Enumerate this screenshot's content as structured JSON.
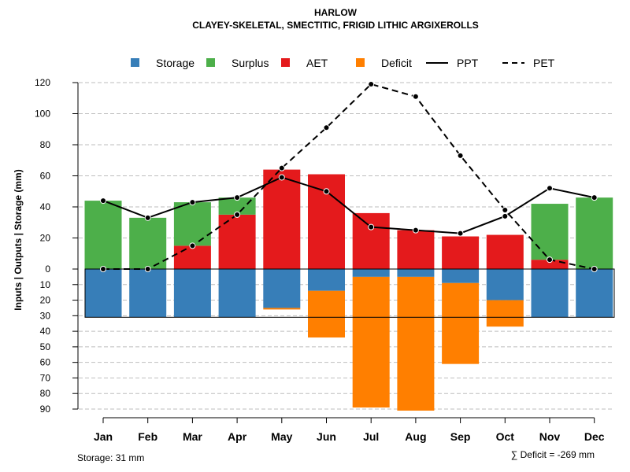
{
  "chart_data": {
    "type": "bar",
    "title": "HARLOW",
    "subtitle": "CLAYEY-SKELETAL, SMECTITIC, FRIGID LITHIC ARGIXEROLLS",
    "ylabel": "Inputs | Outputs | Storage    (mm)",
    "categories": [
      "Jan",
      "Feb",
      "Mar",
      "Apr",
      "May",
      "Jun",
      "Jul",
      "Aug",
      "Sep",
      "Oct",
      "Nov",
      "Dec"
    ],
    "upper_axis": {
      "range": [
        0,
        120
      ],
      "ticks": [
        "0",
        "20",
        "40",
        "60",
        "80",
        "100",
        "120"
      ]
    },
    "lower_axis": {
      "range": [
        0,
        90
      ],
      "ticks": [
        "10",
        "20",
        "30",
        "40",
        "50",
        "60",
        "70",
        "80",
        "90"
      ]
    },
    "legend": [
      "Storage",
      "Surplus",
      "AET",
      "Deficit",
      "PPT",
      "PET"
    ],
    "colors": {
      "storage": "#377EB8",
      "surplus": "#4DAF4A",
      "aet": "#E41A1C",
      "deficit": "#FF7F00",
      "line": "#000000",
      "grid": "#BEBEBE"
    },
    "series": [
      {
        "name": "AET",
        "values": [
          0,
          0,
          15,
          35,
          64,
          61,
          36,
          25,
          21,
          22,
          6,
          0
        ]
      },
      {
        "name": "Surplus",
        "values": [
          44,
          33,
          28,
          11,
          0,
          0,
          0,
          0,
          0,
          0,
          36,
          46
        ]
      },
      {
        "name": "Storage",
        "values": [
          31,
          31,
          31,
          31,
          25,
          14,
          5,
          5,
          9,
          20,
          31,
          31
        ]
      },
      {
        "name": "Deficit",
        "values": [
          0,
          0,
          0,
          0,
          1,
          30,
          84,
          86,
          52,
          17,
          0,
          0
        ]
      },
      {
        "name": "PPT",
        "values": [
          44,
          33,
          43,
          46,
          59,
          50,
          27,
          25,
          23,
          34,
          52,
          46
        ]
      },
      {
        "name": "PET",
        "values": [
          0,
          0,
          15,
          35,
          65,
          91,
          119,
          111,
          73,
          38,
          6,
          0
        ]
      }
    ],
    "storage_capacity": 31,
    "storage_note": "Storage: 31 mm",
    "deficit_note": "∑ Deficit = -269 mm"
  }
}
